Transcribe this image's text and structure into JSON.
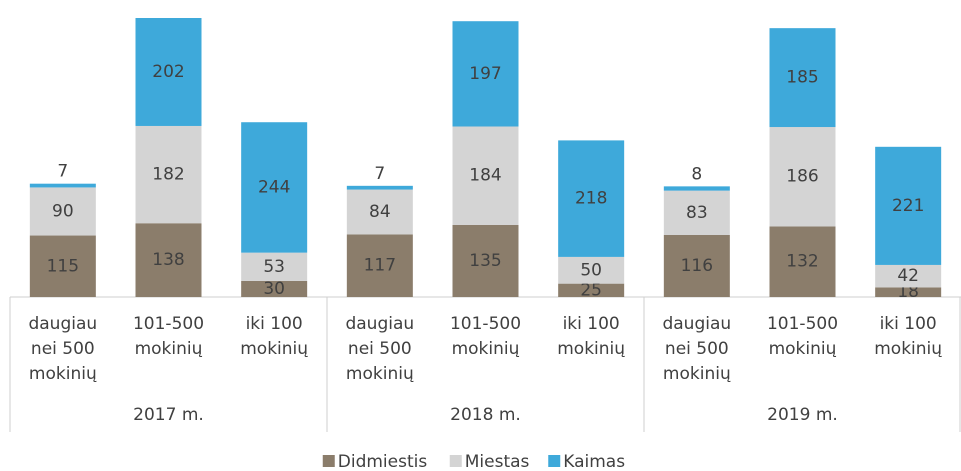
{
  "chart_data": {
    "type": "stacked_bar",
    "categories": [
      "daugiau nei 500 mokinių",
      "101-500 mokinių",
      "iki 100 mokinių",
      "daugiau nei 500 mokinių",
      "101-500 mokinių",
      "iki 100 mokinių",
      "daugiau nei 500 mokinių",
      "101-500 mokinių",
      "iki 100 mokinių"
    ],
    "groups": [
      "2017 m.",
      "2018 m.",
      "2019 m."
    ],
    "series": [
      {
        "name": "Didmiestis",
        "color": "#8b7d6b",
        "values": [
          115,
          138,
          30,
          117,
          135,
          25,
          116,
          132,
          18
        ]
      },
      {
        "name": "Miestas",
        "color": "#d4d4d4",
        "values": [
          90,
          182,
          53,
          84,
          184,
          50,
          83,
          186,
          42
        ]
      },
      {
        "name": "Kaimas",
        "color": "#3ea9da",
        "values": [
          7,
          202,
          244,
          7,
          197,
          218,
          8,
          185,
          221
        ]
      }
    ],
    "legend": "bottom"
  }
}
